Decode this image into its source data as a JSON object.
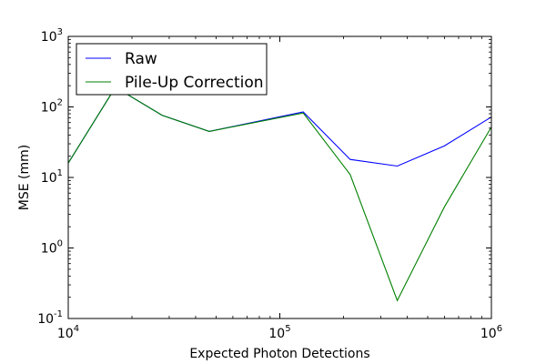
{
  "chart_data": {
    "type": "line",
    "xlabel": "Expected Photon Detections",
    "ylabel": "MSE (mm)",
    "xscale": "log",
    "yscale": "log",
    "xlim": [
      10000,
      1000000
    ],
    "ylim": [
      0.1,
      1000
    ],
    "grid": false,
    "legend_position": "top-left",
    "x_ticks": [
      {
        "base": "10",
        "exp": "4",
        "value": 10000
      },
      {
        "base": "10",
        "exp": "5",
        "value": 100000
      },
      {
        "base": "10",
        "exp": "6",
        "value": 1000000
      }
    ],
    "y_ticks": [
      {
        "base": "10",
        "exp": "-1",
        "value": 0.1
      },
      {
        "base": "10",
        "exp": "0",
        "value": 1
      },
      {
        "base": "10",
        "exp": "1",
        "value": 10
      },
      {
        "base": "10",
        "exp": "2",
        "value": 100
      },
      {
        "base": "10",
        "exp": "3",
        "value": 1000
      }
    ],
    "series": [
      {
        "name": "Raw",
        "color": "#0000ff",
        "x": [
          10000,
          16700,
          27800,
          46400,
          129000,
          215000,
          359000,
          599000,
          1000000
        ],
        "y": [
          16,
          190,
          76,
          45,
          85,
          18,
          14.5,
          28,
          72
        ]
      },
      {
        "name": "Pile-Up Correction",
        "color": "#008000",
        "x": [
          10000,
          16700,
          27800,
          46400,
          129000,
          215000,
          359000,
          599000,
          1000000
        ],
        "y": [
          16,
          190,
          76,
          45,
          82,
          11,
          0.18,
          3.8,
          52
        ]
      }
    ]
  }
}
